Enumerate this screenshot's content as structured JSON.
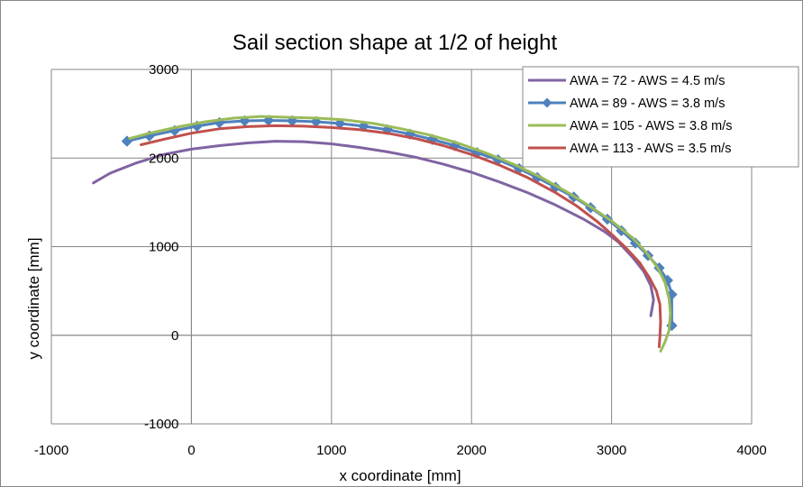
{
  "chart_data": {
    "type": "line",
    "title": "Sail section shape at 1/2 of height",
    "xlabel": "x coordinate [mm]",
    "ylabel": "y coordinate  [mm]",
    "xlim": [
      -1000,
      4000
    ],
    "ylim": [
      -1000,
      3000
    ],
    "xticks": [
      -1000,
      0,
      1000,
      2000,
      3000,
      4000
    ],
    "yticks": [
      -1000,
      0,
      1000,
      2000,
      3000
    ],
    "grid": true,
    "legend_position": "top-right",
    "series": [
      {
        "name": "AWA = 72 - AWS = 4.5 m/s",
        "color": "#8064a2",
        "marker": "none",
        "points": [
          [
            -700,
            1720
          ],
          [
            -580,
            1830
          ],
          [
            -400,
            1940
          ],
          [
            -200,
            2040
          ],
          [
            0,
            2100
          ],
          [
            200,
            2140
          ],
          [
            400,
            2170
          ],
          [
            600,
            2190
          ],
          [
            800,
            2185
          ],
          [
            1000,
            2160
          ],
          [
            1200,
            2120
          ],
          [
            1400,
            2070
          ],
          [
            1600,
            2010
          ],
          [
            1800,
            1930
          ],
          [
            2000,
            1840
          ],
          [
            2200,
            1730
          ],
          [
            2400,
            1610
          ],
          [
            2600,
            1470
          ],
          [
            2800,
            1310
          ],
          [
            2950,
            1170
          ],
          [
            3050,
            1050
          ],
          [
            3150,
            880
          ],
          [
            3230,
            720
          ],
          [
            3280,
            560
          ],
          [
            3300,
            400
          ],
          [
            3280,
            220
          ]
        ]
      },
      {
        "name": "AWA = 89 - AWS = 3.8 m/s",
        "color": "#4f81bd",
        "marker": "diamond",
        "points": [
          [
            -460,
            2190
          ],
          [
            -300,
            2250
          ],
          [
            -120,
            2310
          ],
          [
            40,
            2360
          ],
          [
            200,
            2400
          ],
          [
            380,
            2420
          ],
          [
            550,
            2425
          ],
          [
            720,
            2420
          ],
          [
            890,
            2410
          ],
          [
            1060,
            2390
          ],
          [
            1230,
            2360
          ],
          [
            1400,
            2320
          ],
          [
            1560,
            2270
          ],
          [
            1720,
            2210
          ],
          [
            1880,
            2140
          ],
          [
            2040,
            2060
          ],
          [
            2190,
            1980
          ],
          [
            2340,
            1880
          ],
          [
            2470,
            1780
          ],
          [
            2600,
            1670
          ],
          [
            2730,
            1560
          ],
          [
            2850,
            1440
          ],
          [
            2970,
            1310
          ],
          [
            3070,
            1180
          ],
          [
            3170,
            1040
          ],
          [
            3260,
            900
          ],
          [
            3340,
            760
          ],
          [
            3400,
            620
          ],
          [
            3430,
            460
          ],
          [
            3430,
            110
          ]
        ]
      },
      {
        "name": "AWA = 105 - AWS = 3.8 m/s",
        "color": "#9bbb59",
        "marker": "none",
        "points": [
          [
            -440,
            2220
          ],
          [
            -300,
            2280
          ],
          [
            -100,
            2350
          ],
          [
            100,
            2410
          ],
          [
            300,
            2450
          ],
          [
            500,
            2470
          ],
          [
            700,
            2460
          ],
          [
            900,
            2450
          ],
          [
            1100,
            2430
          ],
          [
            1300,
            2390
          ],
          [
            1500,
            2330
          ],
          [
            1700,
            2260
          ],
          [
            1900,
            2170
          ],
          [
            2100,
            2060
          ],
          [
            2300,
            1930
          ],
          [
            2500,
            1780
          ],
          [
            2700,
            1600
          ],
          [
            2850,
            1450
          ],
          [
            3000,
            1290
          ],
          [
            3150,
            1100
          ],
          [
            3250,
            930
          ],
          [
            3330,
            760
          ],
          [
            3380,
            600
          ],
          [
            3410,
            420
          ],
          [
            3420,
            250
          ],
          [
            3410,
            50
          ],
          [
            3380,
            -80
          ],
          [
            3350,
            -180
          ]
        ]
      },
      {
        "name": "AWA = 113 - AWS = 3.5 m/s",
        "color": "#c0504d",
        "marker": "none",
        "points": [
          [
            -360,
            2150
          ],
          [
            -200,
            2210
          ],
          [
            0,
            2280
          ],
          [
            200,
            2330
          ],
          [
            400,
            2355
          ],
          [
            600,
            2365
          ],
          [
            800,
            2360
          ],
          [
            1000,
            2345
          ],
          [
            1200,
            2320
          ],
          [
            1400,
            2280
          ],
          [
            1600,
            2220
          ],
          [
            1800,
            2140
          ],
          [
            2000,
            2040
          ],
          [
            2200,
            1920
          ],
          [
            2400,
            1780
          ],
          [
            2600,
            1610
          ],
          [
            2750,
            1460
          ],
          [
            2900,
            1280
          ],
          [
            3000,
            1140
          ],
          [
            3100,
            990
          ],
          [
            3200,
            820
          ],
          [
            3270,
            650
          ],
          [
            3320,
            500
          ],
          [
            3345,
            350
          ],
          [
            3350,
            150
          ],
          [
            3345,
            -20
          ],
          [
            3340,
            -130
          ]
        ]
      }
    ]
  }
}
